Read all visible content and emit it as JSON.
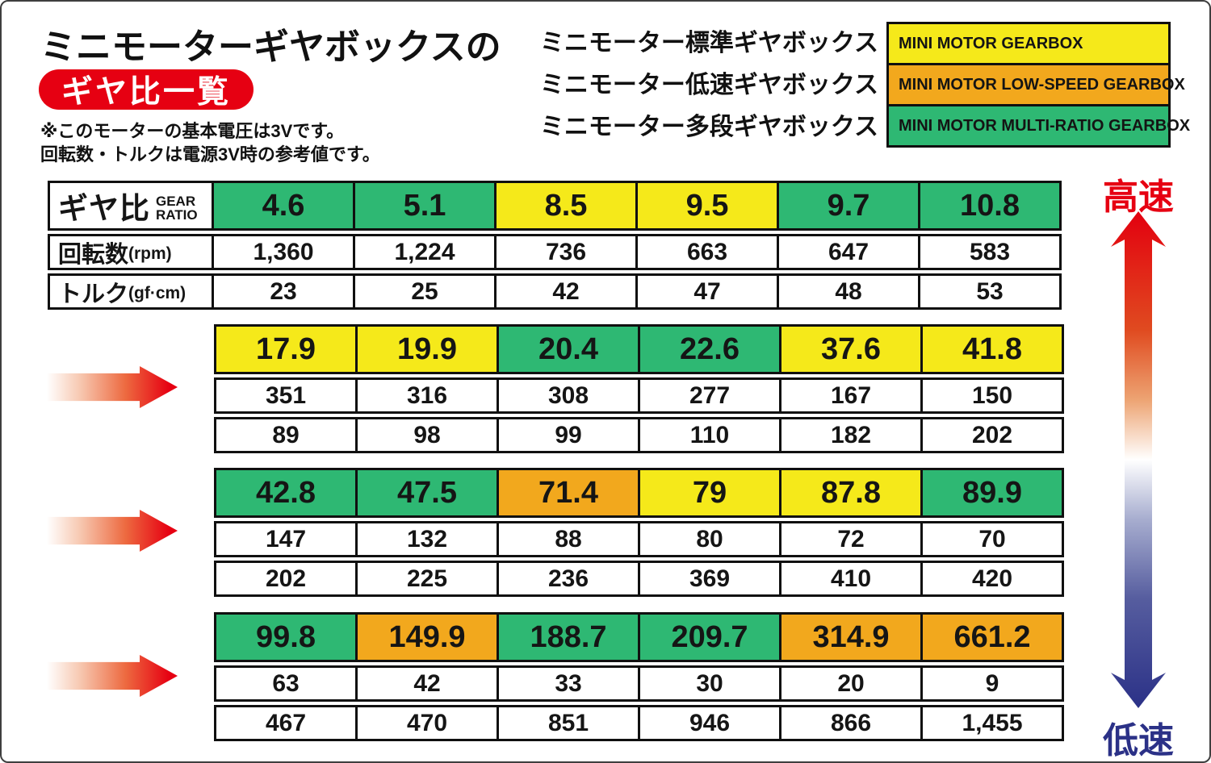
{
  "header": {
    "title": "ミニモーターギヤボックスの",
    "badge": "ギヤ比一覧",
    "notes": [
      "※このモーターの基本電圧は3Vです。",
      "回転数・トルクは電源3V時の参考値です。"
    ]
  },
  "legend": {
    "items": [
      {
        "jp": "ミニモーター標準ギヤボックス",
        "en": "MINI MOTOR GEARBOX",
        "type": "standard"
      },
      {
        "jp": "ミニモーター低速ギヤボックス",
        "en": "MINI MOTOR LOW-SPEED GEARBOX",
        "type": "low_speed"
      },
      {
        "jp": "ミニモーター多段ギヤボックス",
        "en": "MINI MOTOR MULTI-RATIO GEARBOX",
        "type": "multi_ratio"
      }
    ]
  },
  "colors": {
    "standard": "#f5e91a",
    "low_speed": "#f2a81d",
    "multi_ratio": "#2eb873",
    "accent_red": "#e60012",
    "speed_blue": "#2b3187",
    "border_black": "#101010"
  },
  "row_headers": {
    "ratio_jp": "ギヤ比",
    "ratio_en_line1": "GEAR",
    "ratio_en_line2": "RATIO",
    "rpm_jp": "回転数",
    "rpm_unit": "(rpm)",
    "torque_jp": "トルク",
    "torque_unit": "(gf·cm)"
  },
  "speed_scale": {
    "high": "高速",
    "low": "低速"
  },
  "chart_data": {
    "type": "table",
    "title": "ミニモーターギヤボックスの ギヤ比一覧",
    "rows": [
      "ギヤ比 GEAR RATIO",
      "回転数(rpm)",
      "トルク(gf·cm)"
    ],
    "type_legend": {
      "standard": "MINI MOTOR GEARBOX",
      "low_speed": "MINI MOTOR LOW-SPEED GEARBOX",
      "multi_ratio": "MINI MOTOR MULTI-RATIO GEARBOX"
    },
    "blocks": [
      {
        "ratios": [
          "4.6",
          "5.1",
          "8.5",
          "9.5",
          "9.7",
          "10.8"
        ],
        "types": [
          "multi_ratio",
          "multi_ratio",
          "standard",
          "standard",
          "multi_ratio",
          "multi_ratio"
        ],
        "rpm": [
          "1,360",
          "1,224",
          "736",
          "663",
          "647",
          "583"
        ],
        "torque": [
          "23",
          "25",
          "42",
          "47",
          "48",
          "53"
        ]
      },
      {
        "ratios": [
          "17.9",
          "19.9",
          "20.4",
          "22.6",
          "37.6",
          "41.8"
        ],
        "types": [
          "standard",
          "standard",
          "multi_ratio",
          "multi_ratio",
          "standard",
          "standard"
        ],
        "rpm": [
          "351",
          "316",
          "308",
          "277",
          "167",
          "150"
        ],
        "torque": [
          "89",
          "98",
          "99",
          "110",
          "182",
          "202"
        ]
      },
      {
        "ratios": [
          "42.8",
          "47.5",
          "71.4",
          "79",
          "87.8",
          "89.9"
        ],
        "types": [
          "multi_ratio",
          "multi_ratio",
          "low_speed",
          "standard",
          "standard",
          "multi_ratio"
        ],
        "rpm": [
          "147",
          "132",
          "88",
          "80",
          "72",
          "70"
        ],
        "torque": [
          "202",
          "225",
          "236",
          "369",
          "410",
          "420"
        ]
      },
      {
        "ratios": [
          "99.8",
          "149.9",
          "188.7",
          "209.7",
          "314.9",
          "661.2"
        ],
        "types": [
          "multi_ratio",
          "low_speed",
          "multi_ratio",
          "multi_ratio",
          "low_speed",
          "low_speed"
        ],
        "rpm": [
          "63",
          "42",
          "33",
          "30",
          "20",
          "9"
        ],
        "torque": [
          "467",
          "470",
          "851",
          "946",
          "866",
          "1,455"
        ]
      }
    ]
  }
}
